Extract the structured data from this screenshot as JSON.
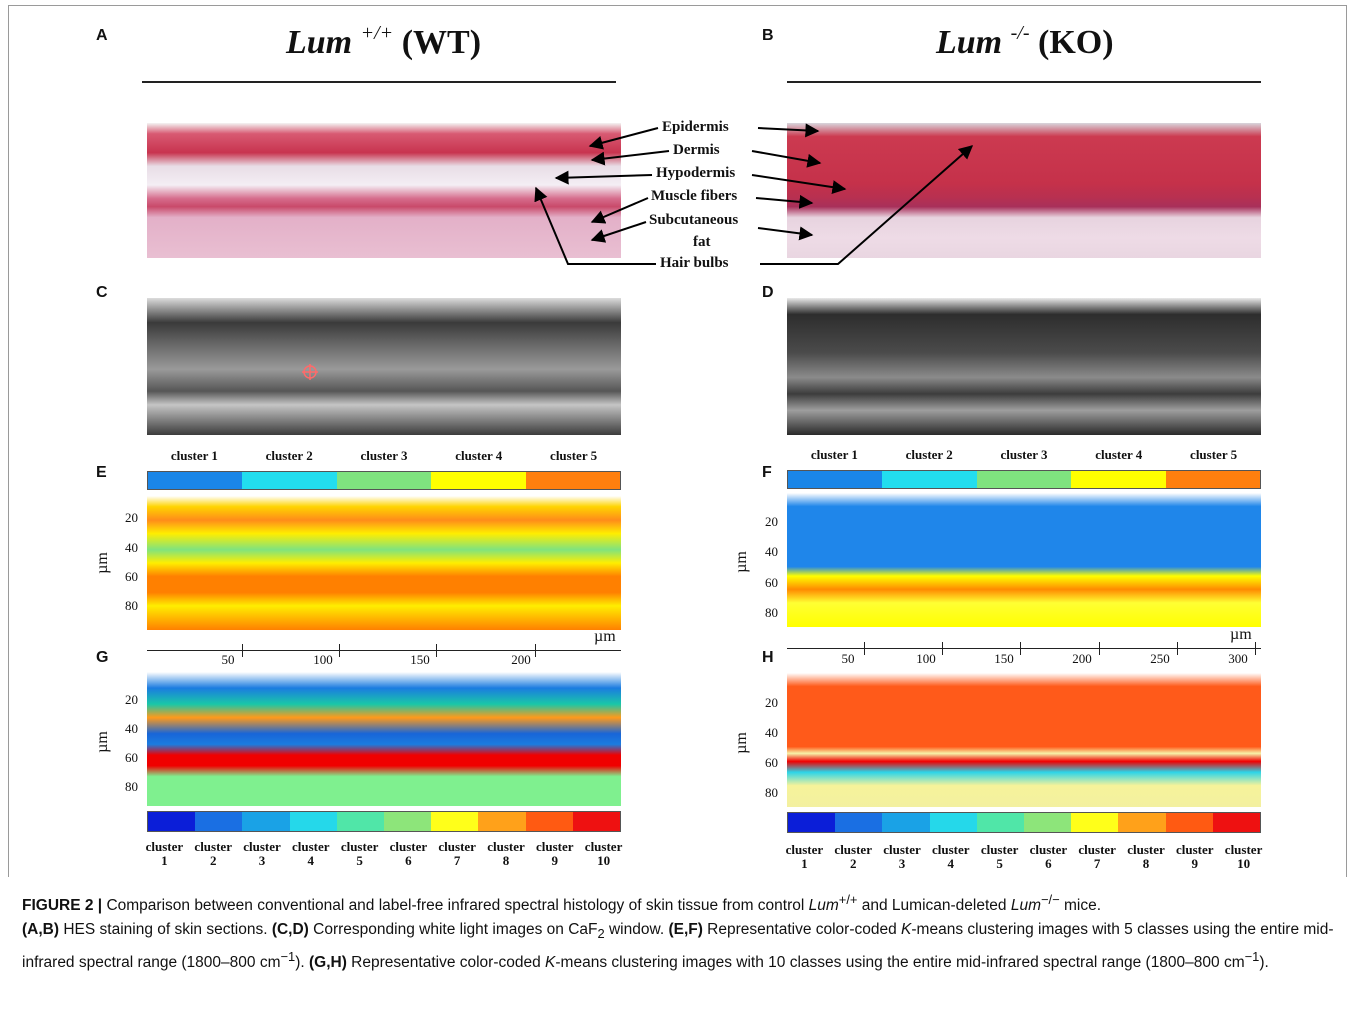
{
  "panels": {
    "A": "A",
    "B": "B",
    "C": "C",
    "D": "D",
    "E": "E",
    "F": "F",
    "G": "G",
    "H": "H"
  },
  "genotype_left": {
    "gene": "Lum",
    "sup": "+/+",
    "tag": "(WT)"
  },
  "genotype_right": {
    "gene": "Lum",
    "sup": "-/-",
    "tag": "(KO)"
  },
  "annotations": {
    "epidermis": "Epidermis",
    "dermis": "Dermis",
    "hypodermis": "Hypodermis",
    "muscle": "Muscle fibers",
    "subcut1": "Subcutaneous",
    "subcut2": "fat",
    "hair": "Hair bulbs"
  },
  "legend5": {
    "labels": [
      "cluster 1",
      "cluster 2",
      "cluster 3",
      "cluster 4",
      "cluster 5"
    ],
    "colors": [
      "#1a86e8",
      "#22ddee",
      "#7fe37f",
      "#ffff00",
      "#ff7f0e"
    ]
  },
  "legend10": {
    "labels_top": [
      "cluster",
      "cluster",
      "cluster",
      "cluster",
      "cluster",
      "cluster",
      "cluster",
      "cluster",
      "cluster",
      "cluster"
    ],
    "labels_num": [
      "1",
      "2",
      "3",
      "4",
      "5",
      "6",
      "7",
      "8",
      "9",
      "10"
    ],
    "colors": [
      "#0b1ed8",
      "#1a6fe3",
      "#1aa2e6",
      "#25d8ea",
      "#50e6a8",
      "#8de57a",
      "#ffff1a",
      "#ffa11a",
      "#ff5a12",
      "#ee1111"
    ]
  },
  "axis": {
    "y_unit": "µm",
    "y_ticks": [
      "20",
      "40",
      "60",
      "80"
    ],
    "x_unit": "µm",
    "x_ticks_left": [
      "50",
      "100",
      "150",
      "200"
    ],
    "x_ticks_right": [
      "50",
      "100",
      "150",
      "200",
      "250",
      "300"
    ]
  },
  "caption": {
    "fig": "FIGURE 2 |",
    "t1": " Comparison between conventional and label-free infrared spectral histology of skin tissue from control ",
    "lum": "Lum",
    "sup_wt": "+/+",
    "t2": " and Lumican-deleted ",
    "sup_ko": "−/−",
    "t3": " mice.",
    "ab": "(A,B)",
    "ab_text": " HES staining of skin sections. ",
    "cd": "(C,D)",
    "cd_text": " Corresponding white light images on CaF",
    "caf_sub": "2",
    "cd_text2": " window. ",
    "ef": "(E,F)",
    "ef_text": " Representative color-coded ",
    "k": "K",
    "ef_text2": "-means clustering images with 5 classes using the entire mid-infrared spectral range (1800–800 cm",
    "minus1": "−1",
    "ef_text3": "). ",
    "gh": "(G,H)",
    "gh_text": " Representative color-coded ",
    "gh_text2": "-means clustering images with 10 classes using the entire mid-infrared spectral range (1800–800 cm",
    "gh_text3": ")."
  }
}
